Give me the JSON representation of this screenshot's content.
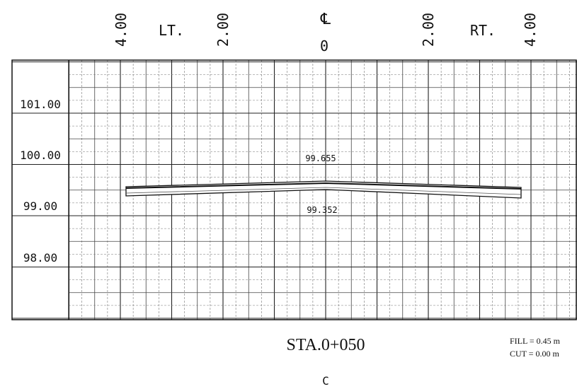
{
  "offset_labels": {
    "left_far": "4.00",
    "left_side": "LT.",
    "left_near": "2.00",
    "centerline": "℄",
    "center": "0",
    "right_near": "2.00",
    "right_side": "RT.",
    "right_far": "4.00"
  },
  "elevation_labels": [
    "101.00",
    "100.00",
    "99.00",
    "98.00"
  ],
  "annotations": {
    "top_elevation": "99.655",
    "bottom_elevation": "99.352"
  },
  "station": "STA.0+050",
  "quantities": {
    "fill": "FILL = 0.45 m",
    "cut": "CUT = 0.00 m"
  },
  "footer": "C"
}
